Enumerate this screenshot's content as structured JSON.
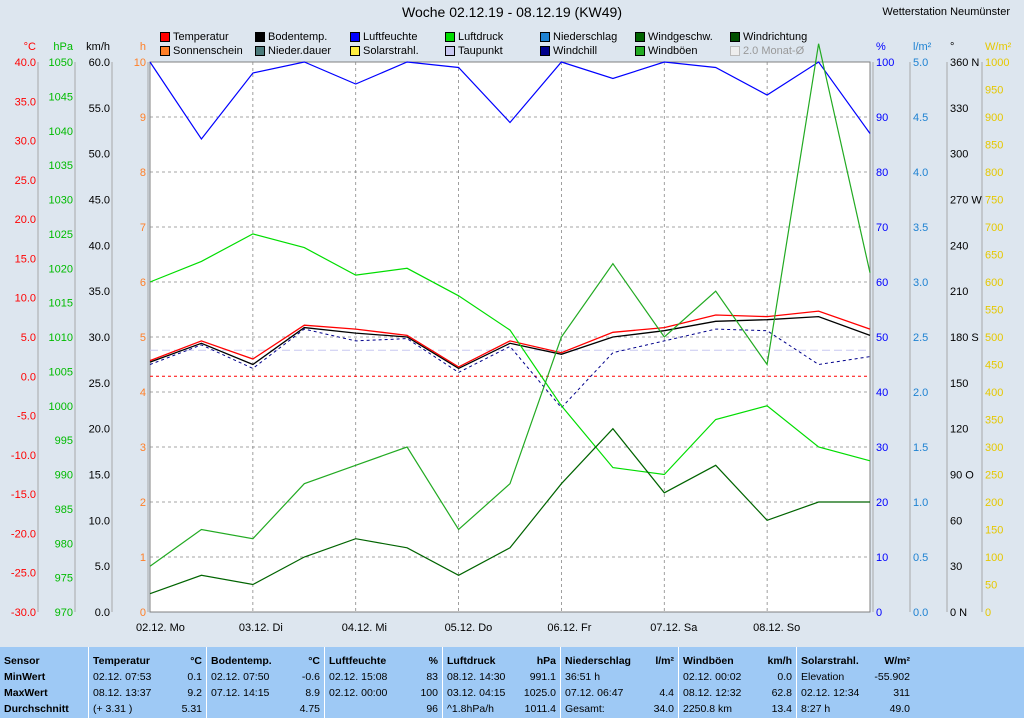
{
  "title": "Woche 02.12.19 - 08.12.19 (KW49)",
  "station": "Wetterstation Neumünster",
  "legend": [
    {
      "label": "Temperatur",
      "color": "#ff0000"
    },
    {
      "label": "Bodentemp.",
      "color": "#000000"
    },
    {
      "label": "Luftfeuchte",
      "color": "#0000ff"
    },
    {
      "label": "Luftdruck",
      "color": "#00dd00"
    },
    {
      "label": "Niederschlag",
      "color": "#1e82d2"
    },
    {
      "label": "Windgeschw.",
      "color": "#006400"
    },
    {
      "label": "Windrichtung",
      "color": "#005000"
    },
    {
      "label": "Sonnenschein",
      "color": "#ff7f27"
    },
    {
      "label": "Nieder.dauer",
      "color": "#4b7a7a"
    },
    {
      "label": "Solarstrahl.",
      "color": "#ffee40"
    },
    {
      "label": "Taupunkt",
      "color": "#c8c8f0"
    },
    {
      "label": "Windchill",
      "color": "#00008b"
    },
    {
      "label": "Windböen",
      "color": "#22aa22"
    },
    {
      "label": "2.0 Monat-Ø",
      "color": "#eeeeee",
      "disabled": true
    }
  ],
  "axes": {
    "temp": {
      "unit": "°C",
      "ticks": [
        "40.0",
        "35.0",
        "30.0",
        "25.0",
        "20.0",
        "15.0",
        "10.0",
        "5.0",
        "0.0",
        "-5.0",
        "-10.0",
        "-15.0",
        "-20.0",
        "-25.0",
        "-30.0"
      ],
      "color": "#ff0000"
    },
    "press": {
      "unit": "hPa",
      "ticks": [
        "1050",
        "1045",
        "1040",
        "1035",
        "1030",
        "1025",
        "1020",
        "1015",
        "1010",
        "1005",
        "1000",
        "995",
        "990",
        "985",
        "980",
        "975",
        "970"
      ],
      "color": "#00bb00"
    },
    "wind": {
      "unit": "km/h",
      "ticks": [
        "60.0",
        "55.0",
        "50.0",
        "45.0",
        "40.0",
        "35.0",
        "30.0",
        "25.0",
        "20.0",
        "15.0",
        "10.0",
        "5.0",
        "0.0"
      ],
      "color": "#000000"
    },
    "sun": {
      "unit": "h",
      "ticks": [
        "10",
        "9",
        "8",
        "7",
        "6",
        "5",
        "4",
        "3",
        "2",
        "1",
        "0"
      ],
      "color": "#ff7f27"
    },
    "hum": {
      "unit": "%",
      "ticks": [
        "100",
        "90",
        "80",
        "70",
        "60",
        "50",
        "40",
        "30",
        "20",
        "10",
        "0"
      ],
      "color": "#0000ff"
    },
    "rain": {
      "unit": "l/m²",
      "ticks": [
        "5.0",
        "4.5",
        "4.0",
        "3.5",
        "3.0",
        "2.5",
        "2.0",
        "1.5",
        "1.0",
        "0.5",
        "0.0"
      ],
      "color": "#1e82d2"
    },
    "dir": {
      "unit": "°",
      "ticks": [
        "360 N",
        "330",
        "300",
        "270 W",
        "240",
        "210",
        "180 S",
        "150",
        "120",
        "90 O",
        "60",
        "30",
        "0 N"
      ],
      "color": "#000000"
    },
    "solar": {
      "unit": "W/m²",
      "ticks": [
        "1000",
        "950",
        "900",
        "850",
        "800",
        "750",
        "700",
        "650",
        "600",
        "550",
        "500",
        "450",
        "400",
        "350",
        "300",
        "250",
        "200",
        "150",
        "100",
        "50",
        "0"
      ],
      "color": "#e6c800"
    }
  },
  "days": [
    "02.12. Mo",
    "03.12. Di",
    "04.12. Mi",
    "05.12. Do",
    "06.12. Fr",
    "07.12. Sa",
    "08.12. So"
  ],
  "chart_data": {
    "type": "line",
    "x": [
      "02.12. 00:00",
      "02.12. 12:00",
      "03.12. 00:00",
      "03.12. 12:00",
      "04.12. 00:00",
      "04.12. 12:00",
      "05.12. 00:00",
      "05.12. 12:00",
      "06.12. 00:00",
      "06.12. 12:00",
      "07.12. 00:00",
      "07.12. 12:00",
      "08.12. 00:00",
      "08.12. 12:00",
      "08.12. 24:00"
    ],
    "series": [
      {
        "name": "Temperatur",
        "axis": "temp",
        "values": [
          2.0,
          4.5,
          2.2,
          6.5,
          6.0,
          5.2,
          1.2,
          4.5,
          3.0,
          5.6,
          6.2,
          7.8,
          7.6,
          8.3,
          6.0
        ]
      },
      {
        "name": "Bodentemp.",
        "axis": "temp",
        "values": [
          1.8,
          4.2,
          1.5,
          6.2,
          5.5,
          5.0,
          1.0,
          4.2,
          2.8,
          5.0,
          5.8,
          7.0,
          7.2,
          7.6,
          5.2
        ]
      },
      {
        "name": "Windchill",
        "axis": "temp",
        "values": [
          1.5,
          4.0,
          1.0,
          6.0,
          4.5,
          4.8,
          0.5,
          3.8,
          -4.0,
          3.0,
          4.5,
          6.0,
          5.8,
          1.5,
          2.5
        ]
      },
      {
        "name": "Luftfeuchte",
        "axis": "hum",
        "values": [
          100,
          86,
          98,
          100,
          96,
          100,
          99,
          89,
          100,
          97,
          100,
          99,
          94,
          100,
          87
        ]
      },
      {
        "name": "Luftdruck",
        "axis": "press",
        "values": [
          1018,
          1021,
          1025,
          1023,
          1019,
          1020,
          1016,
          1011,
          1000,
          991,
          990,
          998,
          1000,
          994,
          992
        ]
      },
      {
        "name": "Windgeschw.",
        "axis": "wind",
        "values": [
          2,
          4,
          3,
          6,
          8,
          7,
          4,
          7,
          14,
          20,
          13,
          16,
          10,
          12,
          12
        ]
      },
      {
        "name": "Windböen",
        "axis": "wind",
        "values": [
          5,
          9,
          8,
          14,
          16,
          18,
          9,
          14,
          30,
          38,
          30,
          35,
          27,
          62,
          37
        ]
      }
    ],
    "minmax": {
      "Temperatur": {
        "min": "0.1",
        "min_time": "02.12. 07:53",
        "max": "9.2",
        "max_time": "08.12. 13:37",
        "avg": "5.31",
        "avg_note": "(+ 3.31 )"
      },
      "Bodentemp.": {
        "min": "-0.6",
        "min_time": "02.12. 07:50",
        "max": "8.9",
        "max_time": "07.12. 14:15",
        "avg": "4.75"
      },
      "Luftfeuchte": {
        "min": "83",
        "min_time": "02.12. 15:08",
        "max": "100",
        "max_time": "02.12. 00:00",
        "avg": "96"
      },
      "Luftdruck": {
        "min": "991.1",
        "min_time": "08.12. 14:30",
        "max": "1025.0",
        "max_time": "03.12. 04:15",
        "avg": "1011.4",
        "avg_note": "^1.8hPa/h"
      },
      "Niederschlag": {
        "dur": "36:51 h",
        "max": "4.4",
        "max_time": "07.12. 06:47",
        "total": "34.0"
      },
      "Windböen": {
        "min": "0.0",
        "min_time": "02.12. 00:02",
        "max": "62.8",
        "max_time": "08.12. 12:32",
        "avg": "13.4",
        "dist": "2250.8 km"
      },
      "Solarstrahl.": {
        "elev": "-55.902",
        "max": "311",
        "max_time": "02.12. 12:34",
        "avg": "49.0",
        "dur": "8:27 h"
      }
    }
  },
  "table": {
    "row_labels": [
      "Sensor",
      "MinWert",
      "MaxWert",
      "Durchschnitt"
    ],
    "cols": [
      {
        "h": "Temperatur",
        "u": "°C",
        "r1a": "02.12.  07:53",
        "r1b": "0.1",
        "r2a": "08.12.  13:37",
        "r2b": "9.2",
        "r3a": "(+ 3.31 )",
        "r3b": "5.31"
      },
      {
        "h": "Bodentemp.",
        "u": "°C",
        "r1a": "02.12.  07:50",
        "r1b": "-0.6",
        "r2a": "07.12.  14:15",
        "r2b": "8.9",
        "r3a": "",
        "r3b": "4.75"
      },
      {
        "h": "Luftfeuchte",
        "u": "%",
        "r1a": "02.12.  15:08",
        "r1b": "83",
        "r2a": "02.12.  00:00",
        "r2b": "100",
        "r3a": "",
        "r3b": "96"
      },
      {
        "h": "Luftdruck",
        "u": "hPa",
        "r1a": "08.12.  14:30",
        "r1b": "991.1",
        "r2a": "03.12.  04:15",
        "r2b": "1025.0",
        "r3a": "^1.8hPa/h",
        "r3b": "1011.4"
      },
      {
        "h": "Niederschlag",
        "u": "l/m²",
        "r1a": "36:51 h",
        "r1b": "",
        "r2a": "07.12.  06:47",
        "r2b": "4.4",
        "r3a": "Gesamt:",
        "r3b": "34.0"
      },
      {
        "h": "Windböen",
        "u": "km/h",
        "r1a": "02.12.  00:02",
        "r1b": "0.0",
        "r2a": "08.12.  12:32",
        "r2b": "62.8",
        "r3a": "2250.8 km",
        "r3b": "13.4"
      },
      {
        "h": "Solarstrahl.",
        "u": "W/m²",
        "r1a": "Elevation",
        "r1b": "-55.902",
        "r2a": "02.12.  12:34",
        "r2b": "311",
        "r3a": "8:27 h",
        "r3b": "49.0"
      }
    ]
  }
}
